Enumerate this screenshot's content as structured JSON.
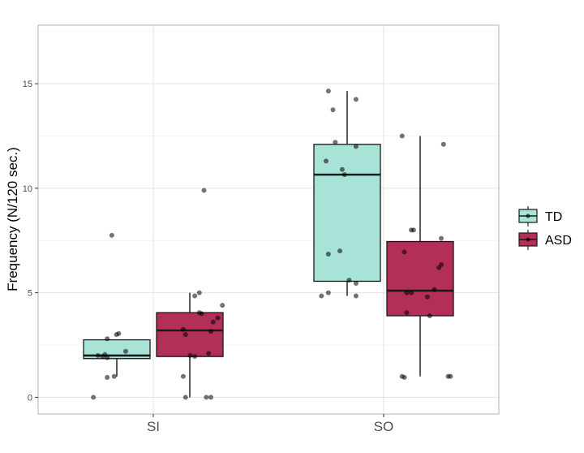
{
  "chart_data": {
    "type": "box",
    "title": "",
    "xlabel": "",
    "ylabel": "Frequency (N/120 sec.)",
    "ylim": [
      -0.8,
      17.8
    ],
    "y_ticks": [
      0,
      5,
      10,
      15
    ],
    "categories": [
      "SI",
      "SO"
    ],
    "grid": true,
    "legend_position": "right",
    "series": [
      {
        "name": "TD",
        "color": "#a8e3d8",
        "boxes": [
          {
            "category": "SI",
            "min": 1.0,
            "q1": 1.85,
            "median": 2.0,
            "q3": 2.75,
            "max": 2.75
          },
          {
            "category": "SO",
            "min": 4.85,
            "q1": 5.55,
            "median": 10.65,
            "q3": 12.1,
            "max": 14.65
          }
        ],
        "points": [
          {
            "category": "SI",
            "y": 7.75,
            "jitter": -0.18
          },
          {
            "category": "SI",
            "y": 3.05,
            "jitter": -0.15
          },
          {
            "category": "SI",
            "y": 3.0,
            "jitter": -0.16
          },
          {
            "category": "SI",
            "y": 2.8,
            "jitter": -0.2
          },
          {
            "category": "SI",
            "y": 2.2,
            "jitter": -0.12
          },
          {
            "category": "SI",
            "y": 2.05,
            "jitter": -0.21
          },
          {
            "category": "SI",
            "y": 2.0,
            "jitter": -0.24
          },
          {
            "category": "SI",
            "y": 1.95,
            "jitter": -0.22
          },
          {
            "category": "SI",
            "y": 1.9,
            "jitter": -0.2
          },
          {
            "category": "SI",
            "y": 1.0,
            "jitter": -0.17
          },
          {
            "category": "SI",
            "y": 0.95,
            "jitter": -0.2
          },
          {
            "category": "SI",
            "y": 0.0,
            "jitter": -0.26
          },
          {
            "category": "SO",
            "y": 14.65,
            "jitter": -0.24
          },
          {
            "category": "SO",
            "y": 14.25,
            "jitter": -0.12
          },
          {
            "category": "SO",
            "y": 13.75,
            "jitter": -0.22
          },
          {
            "category": "SO",
            "y": 12.2,
            "jitter": -0.21
          },
          {
            "category": "SO",
            "y": 12.0,
            "jitter": -0.12
          },
          {
            "category": "SO",
            "y": 11.3,
            "jitter": -0.25
          },
          {
            "category": "SO",
            "y": 10.9,
            "jitter": -0.18
          },
          {
            "category": "SO",
            "y": 10.65,
            "jitter": -0.17
          },
          {
            "category": "SO",
            "y": 7.0,
            "jitter": -0.19
          },
          {
            "category": "SO",
            "y": 6.85,
            "jitter": -0.24
          },
          {
            "category": "SO",
            "y": 5.6,
            "jitter": -0.15
          },
          {
            "category": "SO",
            "y": 5.45,
            "jitter": -0.12
          },
          {
            "category": "SO",
            "y": 5.0,
            "jitter": -0.24
          },
          {
            "category": "SO",
            "y": 4.85,
            "jitter": -0.27
          },
          {
            "category": "SO",
            "y": 4.85,
            "jitter": -0.12
          }
        ]
      },
      {
        "name": "ASD",
        "color": "#b22f57",
        "boxes": [
          {
            "category": "SI",
            "min": 0.0,
            "q1": 1.95,
            "median": 3.2,
            "q3": 4.05,
            "max": 5.0
          },
          {
            "category": "SO",
            "min": 1.0,
            "q1": 3.9,
            "median": 5.1,
            "q3": 7.45,
            "max": 12.5
          }
        ],
        "points": [
          {
            "category": "SI",
            "y": 9.9,
            "jitter": 0.22
          },
          {
            "category": "SI",
            "y": 5.0,
            "jitter": 0.2
          },
          {
            "category": "SI",
            "y": 4.85,
            "jitter": 0.18
          },
          {
            "category": "SI",
            "y": 4.4,
            "jitter": 0.3
          },
          {
            "category": "SI",
            "y": 4.05,
            "jitter": 0.2
          },
          {
            "category": "SI",
            "y": 4.0,
            "jitter": 0.21
          },
          {
            "category": "SI",
            "y": 3.8,
            "jitter": 0.28
          },
          {
            "category": "SI",
            "y": 3.6,
            "jitter": 0.26
          },
          {
            "category": "SI",
            "y": 3.25,
            "jitter": 0.13
          },
          {
            "category": "SI",
            "y": 3.15,
            "jitter": 0.25
          },
          {
            "category": "SI",
            "y": 3.0,
            "jitter": 0.14
          },
          {
            "category": "SI",
            "y": 2.1,
            "jitter": 0.24
          },
          {
            "category": "SI",
            "y": 2.0,
            "jitter": 0.16
          },
          {
            "category": "SI",
            "y": 1.95,
            "jitter": 0.18
          },
          {
            "category": "SI",
            "y": 1.0,
            "jitter": 0.13
          },
          {
            "category": "SI",
            "y": 0.0,
            "jitter": 0.14
          },
          {
            "category": "SI",
            "y": 0.0,
            "jitter": 0.23
          },
          {
            "category": "SI",
            "y": 0.0,
            "jitter": 0.25
          },
          {
            "category": "SO",
            "y": 12.5,
            "jitter": 0.08
          },
          {
            "category": "SO",
            "y": 12.1,
            "jitter": 0.26
          },
          {
            "category": "SO",
            "y": 8.0,
            "jitter": 0.12
          },
          {
            "category": "SO",
            "y": 8.0,
            "jitter": 0.13
          },
          {
            "category": "SO",
            "y": 7.6,
            "jitter": 0.25
          },
          {
            "category": "SO",
            "y": 6.95,
            "jitter": 0.09
          },
          {
            "category": "SO",
            "y": 6.35,
            "jitter": 0.25
          },
          {
            "category": "SO",
            "y": 6.2,
            "jitter": 0.24
          },
          {
            "category": "SO",
            "y": 5.15,
            "jitter": 0.22
          },
          {
            "category": "SO",
            "y": 5.0,
            "jitter": 0.1
          },
          {
            "category": "SO",
            "y": 5.0,
            "jitter": 0.12
          },
          {
            "category": "SO",
            "y": 4.8,
            "jitter": 0.19
          },
          {
            "category": "SO",
            "y": 4.05,
            "jitter": 0.1
          },
          {
            "category": "SO",
            "y": 3.9,
            "jitter": 0.2
          },
          {
            "category": "SO",
            "y": 1.0,
            "jitter": 0.08
          },
          {
            "category": "SO",
            "y": 0.95,
            "jitter": 0.09
          },
          {
            "category": "SO",
            "y": 1.0,
            "jitter": 0.28
          },
          {
            "category": "SO",
            "y": 1.0,
            "jitter": 0.29
          }
        ]
      }
    ]
  }
}
